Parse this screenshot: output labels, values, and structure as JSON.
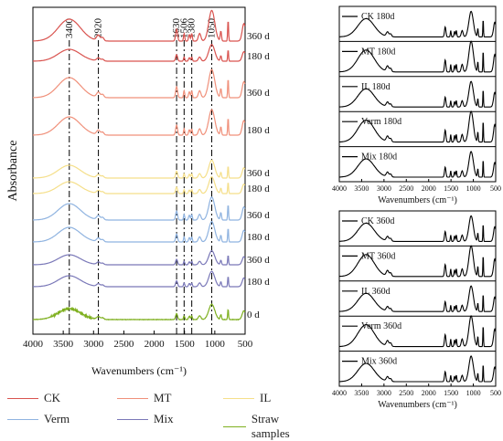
{
  "chart_data": [
    {
      "type": "line",
      "panel": "main",
      "xlabel": "Wavenumbers (cm⁻¹)",
      "ylabel": "Absorbance",
      "xlim": [
        4000,
        500
      ],
      "xticks": [
        4000,
        3500,
        3000,
        2500,
        2000,
        1500,
        1000,
        500
      ],
      "reference_lines": [
        {
          "label": "3400",
          "x": 3400
        },
        {
          "label": "2920",
          "x": 2920
        },
        {
          "label": "1630",
          "x": 1630
        },
        {
          "label": "1506",
          "x": 1506
        },
        {
          "label": "1380",
          "x": 1380
        },
        {
          "label": "1050",
          "x": 1050
        }
      ],
      "series": [
        {
          "name": "CK",
          "time": "360 d",
          "color": "#d9534f"
        },
        {
          "name": "CK",
          "time": "180 d",
          "color": "#d9534f"
        },
        {
          "name": "MT",
          "time": "360 d",
          "color": "#f0907a"
        },
        {
          "name": "MT",
          "time": "180 d",
          "color": "#f0907a"
        },
        {
          "name": "IL",
          "time": "360 d",
          "color": "#f5df8a"
        },
        {
          "name": "IL",
          "time": "180 d",
          "color": "#f5df8a"
        },
        {
          "name": "Verm",
          "time": "360 d",
          "color": "#8fb3e0"
        },
        {
          "name": "Verm",
          "time": "180 d",
          "color": "#8fb3e0"
        },
        {
          "name": "Mix",
          "time": "360 d",
          "color": "#7a78b8"
        },
        {
          "name": "Mix",
          "time": "180 d",
          "color": "#7a78b8"
        },
        {
          "name": "Straw samples",
          "time": "0 d",
          "color": "#7fb020"
        }
      ]
    },
    {
      "type": "line",
      "panel": "top-right",
      "xlabel": "Wavenumbers (cm⁻¹)",
      "xlim": [
        4000,
        500
      ],
      "xticks": [
        4000,
        3500,
        3000,
        2500,
        2000,
        1500,
        1000,
        500
      ],
      "series": [
        {
          "name": "CK 180d"
        },
        {
          "name": "MT 180d"
        },
        {
          "name": "IL 180d"
        },
        {
          "name": "Verm 180d"
        },
        {
          "name": "Mix 180d"
        }
      ]
    },
    {
      "type": "line",
      "panel": "bottom-right",
      "xlabel": "Wavenumbers (cm⁻¹)",
      "xlim": [
        4000,
        500
      ],
      "xticks": [
        4000,
        3500,
        3000,
        2500,
        2000,
        1500,
        1000,
        500
      ],
      "series": [
        {
          "name": "CK 360d"
        },
        {
          "name": "MT 360d"
        },
        {
          "name": "IL 360d"
        },
        {
          "name": "Verm 360d"
        },
        {
          "name": "Mix 360d"
        }
      ]
    }
  ],
  "legend": [
    {
      "name": "CK",
      "color": "#d9534f"
    },
    {
      "name": "MT",
      "color": "#f0907a"
    },
    {
      "name": "IL",
      "color": "#f5df8a"
    },
    {
      "name": "Verm",
      "color": "#8fb3e0"
    },
    {
      "name": "Mix",
      "color": "#7a78b8"
    },
    {
      "name": "Straw samples",
      "color": "#7fb020"
    }
  ]
}
